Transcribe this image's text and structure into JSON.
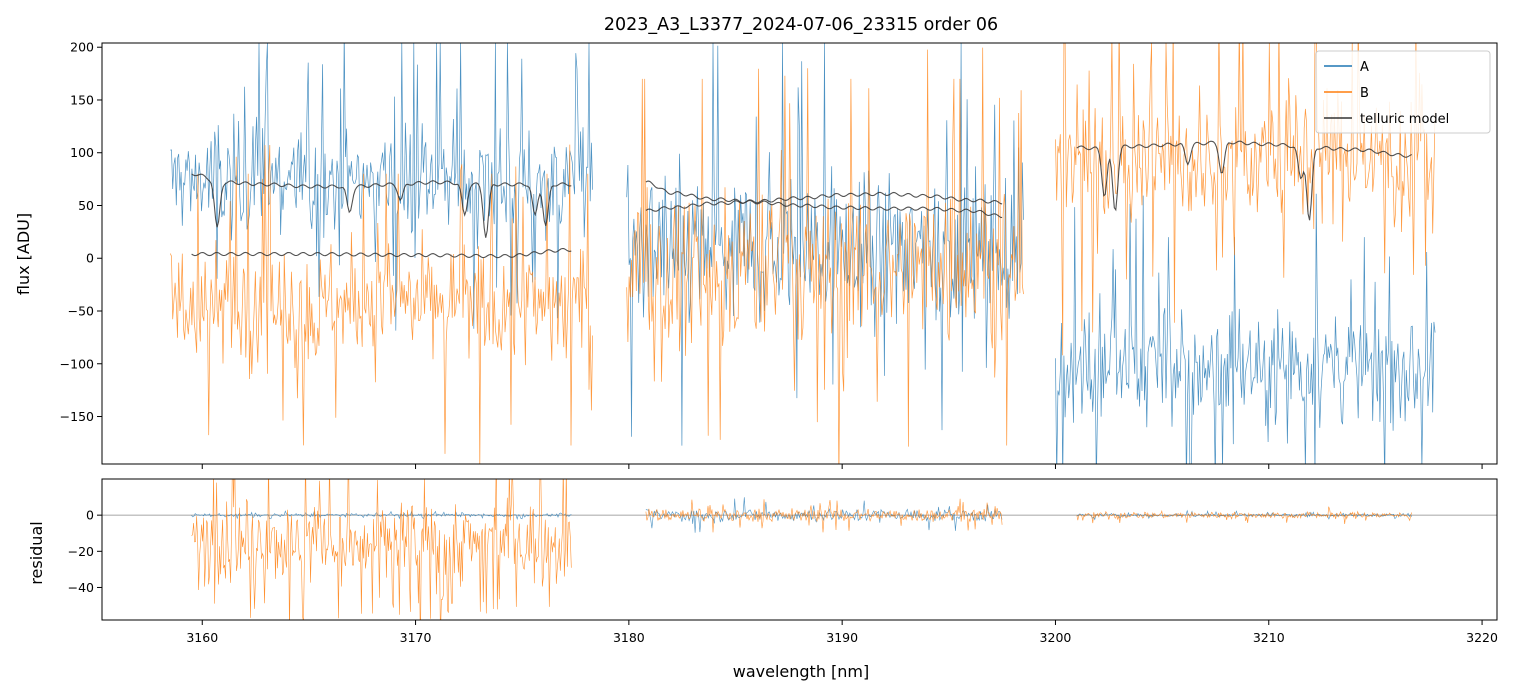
{
  "chart_data": [
    {
      "type": "line",
      "panel": "spectrum",
      "title": "2023_A3_L3377_2024-07-06_23315  order 06",
      "xlabel": "",
      "ylabel": "flux [ADU]",
      "xlim": [
        3155.3,
        3220.7
      ],
      "ylim": [
        -195,
        204
      ],
      "xticks": [
        3160,
        3170,
        3180,
        3190,
        3200,
        3210,
        3220
      ],
      "yticks": [
        -150,
        -100,
        -50,
        0,
        50,
        100,
        150,
        200
      ],
      "ytick_labels": [
        "−150",
        "−100",
        "−50",
        "0",
        "50",
        "100",
        "150",
        "200"
      ],
      "grid": false,
      "legend": {
        "position": "top-right",
        "entries": [
          "A",
          "B",
          "telluric model"
        ]
      },
      "colors": {
        "A": "#1f77b4",
        "B": "#ff7f0e",
        "telluric": "#333333"
      },
      "series": [
        {
          "name": "A",
          "segments": [
            {
              "x_range": [
                3158.5,
                3178.3
              ],
              "mean": 75,
              "noise_halfwidth": 60,
              "spike_max": 204
            },
            {
              "x_range": [
                3179.9,
                3198.5
              ],
              "mean": 10,
              "noise_halfwidth": 80,
              "spike_max": 204
            },
            {
              "x_range": [
                3200.0,
                3217.8
              ],
              "mean": -100,
              "noise_halfwidth": 65,
              "spike_max": 20
            }
          ]
        },
        {
          "name": "B",
          "segments": [
            {
              "x_range": [
                3158.5,
                3178.3
              ],
              "mean": -45,
              "noise_halfwidth": 65,
              "spike_max": 80
            },
            {
              "x_range": [
                3179.9,
                3198.5
              ],
              "mean": -10,
              "noise_halfwidth": 85,
              "spike_max": 170
            },
            {
              "x_range": [
                3200.0,
                3217.8
              ],
              "mean": 95,
              "noise_halfwidth": 75,
              "spike_max": 204
            }
          ]
        },
        {
          "name": "telluric model",
          "segments": [
            {
              "x": [
                3159.5,
                3161,
                3163,
                3165,
                3167,
                3169,
                3171,
                3173,
                3175,
                3177.3
              ],
              "y": [
                80,
                72,
                70,
                68,
                68,
                70,
                72,
                70,
                70,
                70
              ],
              "absorption_lines": [
                [
                  3160.7,
                  45
                ],
                [
                  3166.9,
                  25
                ],
                [
                  3169.3,
                  15
                ],
                [
                  3172.3,
                  30
                ],
                [
                  3173.3,
                  50
                ],
                [
                  3175.6,
                  30
                ],
                [
                  3176.1,
                  40
                ]
              ]
            },
            {
              "x": [
                3159.5,
                3165,
                3170,
                3174,
                3177.3
              ],
              "y": [
                4,
                4,
                3,
                2,
                8
              ],
              "absorption_lines": []
            },
            {
              "x": [
                3180.8,
                3182,
                3184,
                3186,
                3188,
                3190,
                3192,
                3194,
                3196,
                3197.5
              ],
              "y": [
                72,
                62,
                56,
                53,
                50,
                48,
                47,
                47,
                45,
                40
              ],
              "absorption_lines": []
            },
            {
              "x": [
                3180.8,
                3182,
                3184,
                3186,
                3188,
                3190,
                3192,
                3194,
                3196,
                3197.5
              ],
              "y": [
                45,
                48,
                52,
                54,
                57,
                60,
                61,
                59,
                55,
                53
              ],
              "absorption_lines": []
            },
            {
              "x": [
                3201,
                3202,
                3203.5,
                3206,
                3208,
                3210,
                3212,
                3214,
                3216.7
              ],
              "y": [
                105,
                104,
                106,
                108,
                110,
                108,
                105,
                103,
                97
              ],
              "absorption_lines": [
                [
                  3202.3,
                  45
                ],
                [
                  3202.8,
                  60
                ],
                [
                  3206.2,
                  18
                ],
                [
                  3207.8,
                  30
                ],
                [
                  3211.5,
                  30
                ],
                [
                  3211.9,
                  70
                ]
              ]
            }
          ]
        }
      ]
    },
    {
      "type": "line",
      "panel": "residual",
      "title": "",
      "xlabel": "wavelength [nm]",
      "ylabel": "residual",
      "xlim": [
        3155.3,
        3220.7
      ],
      "ylim": [
        -58,
        20
      ],
      "xticks": [
        3160,
        3170,
        3180,
        3190,
        3200,
        3210,
        3220
      ],
      "yticks": [
        -40,
        -20,
        0
      ],
      "ytick_labels": [
        "−40",
        "−20",
        "0"
      ],
      "reference_line": 0,
      "grid": false,
      "series": [
        {
          "name": "A",
          "segments": [
            {
              "x_range": [
                3159.5,
                3177.3
              ],
              "mean": 0,
              "noise_halfwidth": 1
            },
            {
              "x_range": [
                3180.8,
                3197.5
              ],
              "mean": 0,
              "noise_halfwidth": 4
            },
            {
              "x_range": [
                3201,
                3216.7
              ],
              "mean": 0,
              "noise_halfwidth": 1
            }
          ]
        },
        {
          "name": "B",
          "segments": [
            {
              "x_range": [
                3159.5,
                3177.3
              ],
              "mean": -15,
              "noise_halfwidth": 25,
              "deep_min": -58,
              "deep_range": [
                3166,
                3174
              ]
            },
            {
              "x_range": [
                3180.8,
                3197.5
              ],
              "mean": 0,
              "noise_halfwidth": 4
            },
            {
              "x_range": [
                3201,
                3216.7
              ],
              "mean": 0,
              "noise_halfwidth": 2
            }
          ]
        }
      ]
    }
  ]
}
